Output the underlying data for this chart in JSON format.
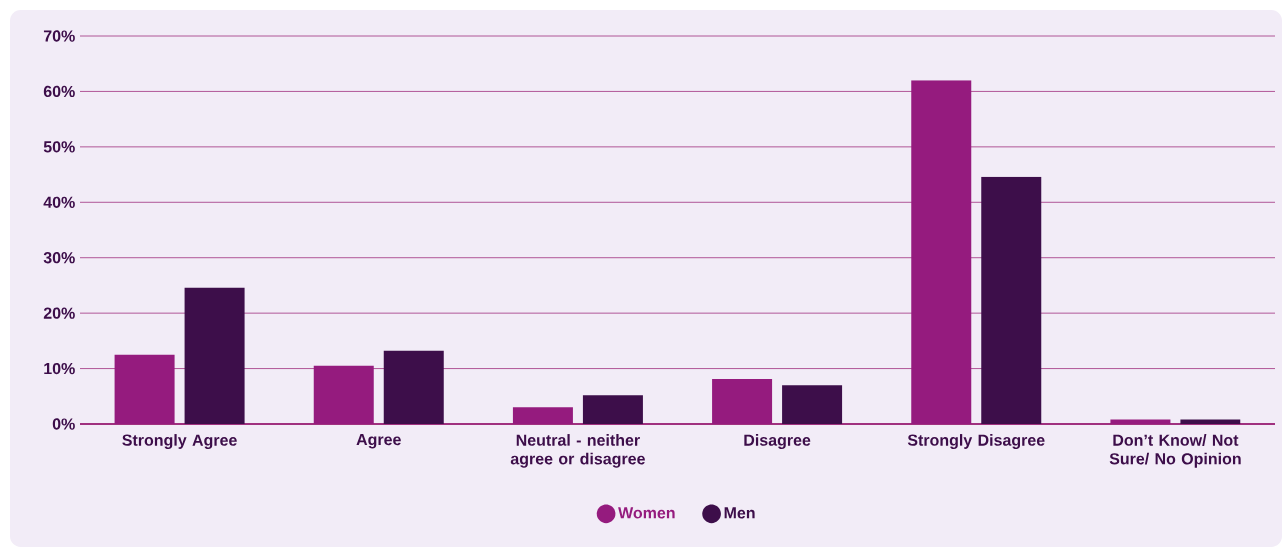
{
  "chart_data": {
    "type": "bar",
    "categories": [
      "Strongly Agree",
      "Agree",
      "Neutral - neither agree or disagree",
      "Disagree",
      "Strongly Disagree",
      "Don’t Know/ Not Sure/ No Opinion"
    ],
    "series": [
      {
        "name": "Women",
        "color": "#951b7e",
        "values": [
          12.5,
          10.5,
          3.0,
          8.1,
          62.0,
          0.8
        ]
      },
      {
        "name": "Men",
        "color": "#3d0e4a",
        "values": [
          24.6,
          13.2,
          5.2,
          7.0,
          44.6,
          0.8
        ]
      }
    ],
    "ylim": [
      0,
      70
    ],
    "yticks": [
      {
        "value": 0,
        "label": "0%"
      },
      {
        "value": 10,
        "label": "10%"
      },
      {
        "value": 20,
        "label": "20%"
      },
      {
        "value": 30,
        "label": "30%"
      },
      {
        "value": 40,
        "label": "40%"
      },
      {
        "value": 50,
        "label": "50%"
      },
      {
        "value": 60,
        "label": "60%"
      },
      {
        "value": 70,
        "label": "70%"
      }
    ],
    "grid": "y",
    "legend": "bottom"
  }
}
